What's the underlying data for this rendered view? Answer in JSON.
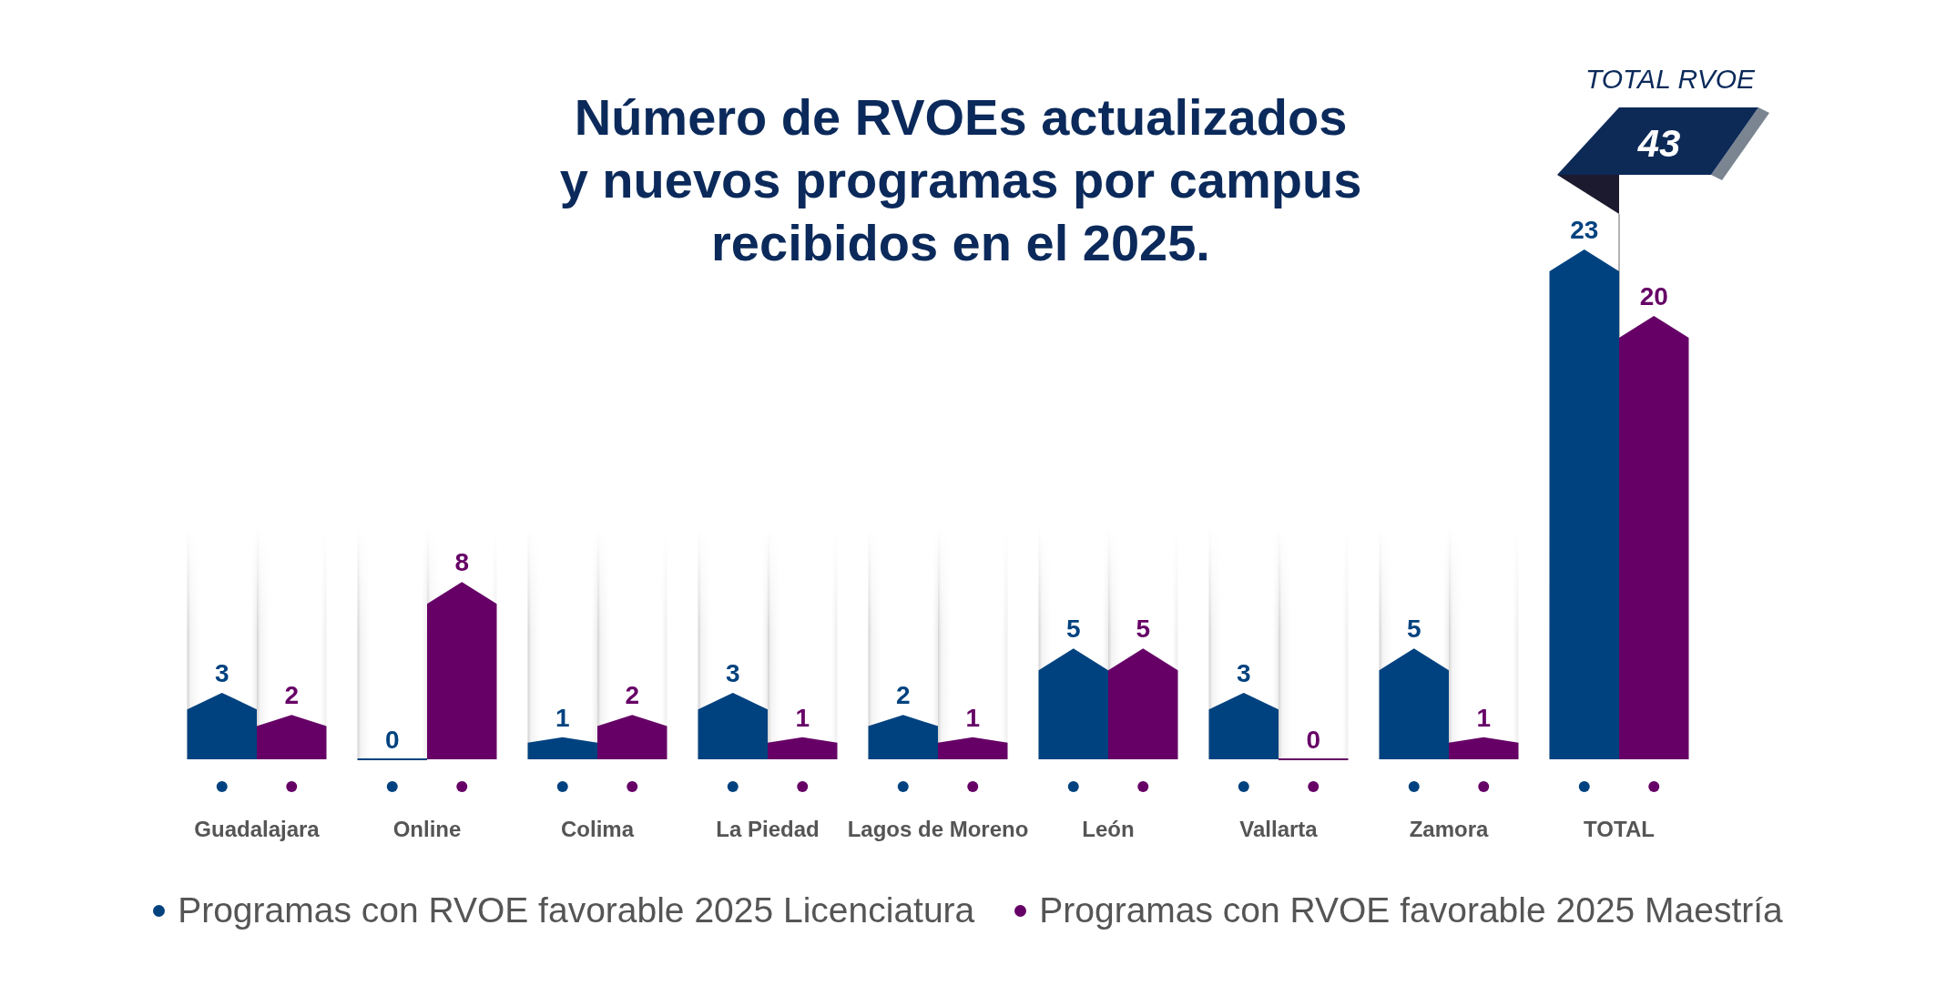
{
  "chart_data": {
    "type": "bar",
    "title": "Número de RVOEs actualizados\ny nuevos programas por campus\nrecibidos en el 2025.",
    "categories": [
      "Guadalajara",
      "Online",
      "Colima",
      "La Piedad",
      "Lagos de Moreno",
      "León",
      "Vallarta",
      "Zamora",
      "TOTAL"
    ],
    "series": [
      {
        "name": "Programas con RVOE favorable 2025 Licenciatura",
        "color": "#00427f",
        "values": [
          3,
          0,
          1,
          3,
          2,
          5,
          3,
          5,
          23
        ]
      },
      {
        "name": "Programas con RVOE favorable 2025 Maestría",
        "color": "#660066",
        "values": [
          2,
          8,
          2,
          1,
          1,
          5,
          0,
          1,
          20
        ]
      }
    ],
    "data_labels": true,
    "legend": "bottom",
    "tick_labels": "x",
    "annotations": [
      "TOTAL RVOE",
      "43"
    ]
  }
}
